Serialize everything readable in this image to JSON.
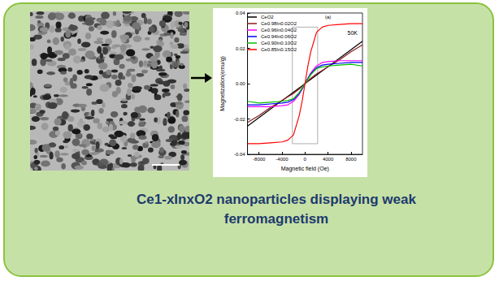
{
  "caption": "Ce1-xInxO2  nanoparticles displaying weak ferromagnetism",
  "chart_data": {
    "type": "line",
    "xlabel": "Magnetic field (Oe)",
    "ylabel": "Magnetization(emu/g)",
    "annotations": [
      "(a)",
      "50K"
    ],
    "x": [
      -10000,
      -8000,
      -6000,
      -4000,
      -3000,
      -2000,
      -1000,
      -500,
      0,
      500,
      1000,
      2000,
      3000,
      4000,
      6000,
      8000,
      10000
    ],
    "series": [
      {
        "name": "CeO2",
        "color": "#000000",
        "values": [
          -0.024,
          -0.0192,
          -0.0144,
          -0.0096,
          -0.0072,
          -0.0048,
          -0.0024,
          -0.0012,
          0,
          0.0012,
          0.0024,
          0.0048,
          0.0072,
          0.0096,
          0.0144,
          0.0192,
          0.024
        ]
      },
      {
        "name": "Ce0.98In0.02O2",
        "color": "#8b1a1a",
        "values": [
          -0.022,
          -0.018,
          -0.0135,
          -0.0095,
          -0.0075,
          -0.0055,
          -0.003,
          -0.0015,
          0,
          0.0015,
          0.003,
          0.0055,
          0.0075,
          0.0095,
          0.0135,
          0.018,
          0.022
        ]
      },
      {
        "name": "Ce0.96In0.04O2",
        "color": "#ff00ff",
        "values": [
          -0.013,
          -0.013,
          -0.013,
          -0.0125,
          -0.012,
          -0.01,
          -0.006,
          -0.003,
          0,
          0.003,
          0.006,
          0.01,
          0.012,
          0.0125,
          0.013,
          0.013,
          0.013
        ]
      },
      {
        "name": "Ce0.94In0.06O2",
        "color": "#0000ff",
        "values": [
          -0.012,
          -0.012,
          -0.0115,
          -0.011,
          -0.0105,
          -0.009,
          -0.0055,
          -0.003,
          0,
          0.003,
          0.0055,
          0.009,
          0.0105,
          0.011,
          0.0115,
          0.012,
          0.012
        ]
      },
      {
        "name": "Ce0.90In0.10O2",
        "color": "#00c000",
        "values": [
          -0.01,
          -0.011,
          -0.0105,
          -0.01,
          -0.0095,
          -0.0085,
          -0.005,
          -0.0025,
          0,
          0.0025,
          0.005,
          0.0085,
          0.0095,
          0.01,
          0.0105,
          0.011,
          0.01
        ]
      },
      {
        "name": "Ce0.85In0.15O2",
        "color": "#ff0000",
        "values": [
          -0.034,
          -0.034,
          -0.0335,
          -0.033,
          -0.032,
          -0.029,
          -0.018,
          -0.01,
          0,
          0.01,
          0.018,
          0.029,
          0.032,
          0.033,
          0.0335,
          0.034,
          0.034
        ]
      }
    ],
    "xlim": [
      -10000,
      10000
    ],
    "xticks": [
      -8000,
      -4000,
      0,
      4000,
      8000
    ],
    "ylim": [
      -0.04,
      0.04
    ],
    "yticks": [
      -0.04,
      -0.02,
      {
        "value": 0,
        "label": "0.00"
      },
      0.02,
      0.04
    ],
    "grid": false,
    "legend": "upper left",
    "highlight_box": {
      "x": [
        -2200,
        2200
      ],
      "y": [
        -0.034,
        0.032
      ]
    }
  }
}
